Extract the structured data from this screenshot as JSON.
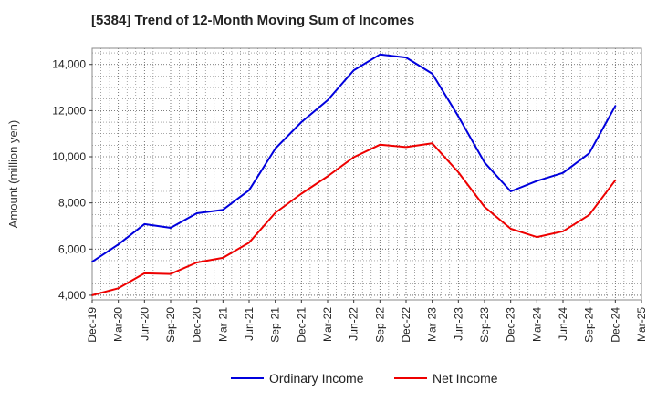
{
  "chart_data": {
    "type": "line",
    "title": "[5384]  Trend of 12-Month Moving Sum of Incomes",
    "xlabel": "",
    "ylabel": "Amount (million yen)",
    "ylim": [
      3800,
      14700
    ],
    "yticks": [
      4000,
      6000,
      8000,
      10000,
      12000,
      14000
    ],
    "ytick_labels": [
      "4,000",
      "6,000",
      "8,000",
      "10,000",
      "12,000",
      "14,000"
    ],
    "categories": [
      "Dec-19",
      "Mar-20",
      "Jun-20",
      "Sep-20",
      "Dec-20",
      "Mar-21",
      "Jun-21",
      "Sep-21",
      "Dec-21",
      "Mar-22",
      "Jun-22",
      "Sep-22",
      "Dec-22",
      "Mar-23",
      "Jun-23",
      "Sep-23",
      "Dec-23",
      "Mar-24",
      "Jun-24",
      "Sep-24",
      "Dec-24",
      "Mar-25"
    ],
    "grid": true,
    "legend_position": "bottom",
    "series": [
      {
        "name": "Ordinary Income",
        "color": "#0000dd",
        "values": [
          5450,
          6200,
          7080,
          6920,
          7550,
          7700,
          8550,
          10350,
          11500,
          12450,
          13750,
          14430,
          14300,
          13600,
          11750,
          9750,
          8500,
          8950,
          9300,
          10150,
          12200,
          null
        ]
      },
      {
        "name": "Net Income",
        "color": "#ee0000",
        "values": [
          4000,
          4300,
          4950,
          4920,
          5420,
          5620,
          6280,
          7570,
          8400,
          9150,
          9980,
          10520,
          10420,
          10580,
          9330,
          7830,
          6880,
          6520,
          6770,
          7480,
          8980,
          null
        ]
      }
    ]
  }
}
